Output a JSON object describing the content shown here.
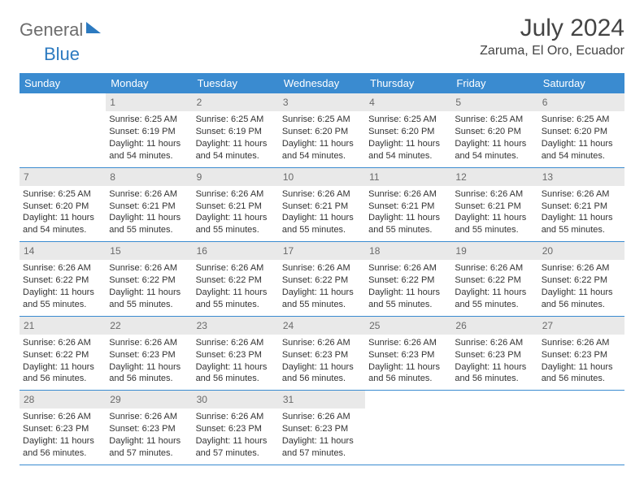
{
  "logo": {
    "part1": "General",
    "part2": "Blue"
  },
  "title": "July 2024",
  "location": "Zaruma, El Oro, Ecuador",
  "colors": {
    "header_bg": "#3a8bd0",
    "header_text": "#ffffff",
    "daynum_bg": "#e9e9e9",
    "daynum_text": "#6a6a6a",
    "row_border": "#3a8bd0",
    "logo_gray": "#6d6d6d",
    "logo_blue": "#2c7ac0",
    "body_text": "#333333",
    "background": "#ffffff"
  },
  "typography": {
    "title_fontsize": 30,
    "location_fontsize": 16,
    "dow_fontsize": 13,
    "daynum_fontsize": 12,
    "body_fontsize": 11,
    "logo_fontsize": 22
  },
  "days_of_week": [
    "Sunday",
    "Monday",
    "Tuesday",
    "Wednesday",
    "Thursday",
    "Friday",
    "Saturday"
  ],
  "weeks": [
    [
      {
        "n": "",
        "sr": "",
        "ss": "",
        "dl": ""
      },
      {
        "n": "1",
        "sr": "6:25 AM",
        "ss": "6:19 PM",
        "dl": "11 hours and 54 minutes."
      },
      {
        "n": "2",
        "sr": "6:25 AM",
        "ss": "6:19 PM",
        "dl": "11 hours and 54 minutes."
      },
      {
        "n": "3",
        "sr": "6:25 AM",
        "ss": "6:20 PM",
        "dl": "11 hours and 54 minutes."
      },
      {
        "n": "4",
        "sr": "6:25 AM",
        "ss": "6:20 PM",
        "dl": "11 hours and 54 minutes."
      },
      {
        "n": "5",
        "sr": "6:25 AM",
        "ss": "6:20 PM",
        "dl": "11 hours and 54 minutes."
      },
      {
        "n": "6",
        "sr": "6:25 AM",
        "ss": "6:20 PM",
        "dl": "11 hours and 54 minutes."
      }
    ],
    [
      {
        "n": "7",
        "sr": "6:25 AM",
        "ss": "6:20 PM",
        "dl": "11 hours and 54 minutes."
      },
      {
        "n": "8",
        "sr": "6:26 AM",
        "ss": "6:21 PM",
        "dl": "11 hours and 55 minutes."
      },
      {
        "n": "9",
        "sr": "6:26 AM",
        "ss": "6:21 PM",
        "dl": "11 hours and 55 minutes."
      },
      {
        "n": "10",
        "sr": "6:26 AM",
        "ss": "6:21 PM",
        "dl": "11 hours and 55 minutes."
      },
      {
        "n": "11",
        "sr": "6:26 AM",
        "ss": "6:21 PM",
        "dl": "11 hours and 55 minutes."
      },
      {
        "n": "12",
        "sr": "6:26 AM",
        "ss": "6:21 PM",
        "dl": "11 hours and 55 minutes."
      },
      {
        "n": "13",
        "sr": "6:26 AM",
        "ss": "6:21 PM",
        "dl": "11 hours and 55 minutes."
      }
    ],
    [
      {
        "n": "14",
        "sr": "6:26 AM",
        "ss": "6:22 PM",
        "dl": "11 hours and 55 minutes."
      },
      {
        "n": "15",
        "sr": "6:26 AM",
        "ss": "6:22 PM",
        "dl": "11 hours and 55 minutes."
      },
      {
        "n": "16",
        "sr": "6:26 AM",
        "ss": "6:22 PM",
        "dl": "11 hours and 55 minutes."
      },
      {
        "n": "17",
        "sr": "6:26 AM",
        "ss": "6:22 PM",
        "dl": "11 hours and 55 minutes."
      },
      {
        "n": "18",
        "sr": "6:26 AM",
        "ss": "6:22 PM",
        "dl": "11 hours and 55 minutes."
      },
      {
        "n": "19",
        "sr": "6:26 AM",
        "ss": "6:22 PM",
        "dl": "11 hours and 55 minutes."
      },
      {
        "n": "20",
        "sr": "6:26 AM",
        "ss": "6:22 PM",
        "dl": "11 hours and 56 minutes."
      }
    ],
    [
      {
        "n": "21",
        "sr": "6:26 AM",
        "ss": "6:22 PM",
        "dl": "11 hours and 56 minutes."
      },
      {
        "n": "22",
        "sr": "6:26 AM",
        "ss": "6:23 PM",
        "dl": "11 hours and 56 minutes."
      },
      {
        "n": "23",
        "sr": "6:26 AM",
        "ss": "6:23 PM",
        "dl": "11 hours and 56 minutes."
      },
      {
        "n": "24",
        "sr": "6:26 AM",
        "ss": "6:23 PM",
        "dl": "11 hours and 56 minutes."
      },
      {
        "n": "25",
        "sr": "6:26 AM",
        "ss": "6:23 PM",
        "dl": "11 hours and 56 minutes."
      },
      {
        "n": "26",
        "sr": "6:26 AM",
        "ss": "6:23 PM",
        "dl": "11 hours and 56 minutes."
      },
      {
        "n": "27",
        "sr": "6:26 AM",
        "ss": "6:23 PM",
        "dl": "11 hours and 56 minutes."
      }
    ],
    [
      {
        "n": "28",
        "sr": "6:26 AM",
        "ss": "6:23 PM",
        "dl": "11 hours and 56 minutes."
      },
      {
        "n": "29",
        "sr": "6:26 AM",
        "ss": "6:23 PM",
        "dl": "11 hours and 57 minutes."
      },
      {
        "n": "30",
        "sr": "6:26 AM",
        "ss": "6:23 PM",
        "dl": "11 hours and 57 minutes."
      },
      {
        "n": "31",
        "sr": "6:26 AM",
        "ss": "6:23 PM",
        "dl": "11 hours and 57 minutes."
      },
      {
        "n": "",
        "sr": "",
        "ss": "",
        "dl": ""
      },
      {
        "n": "",
        "sr": "",
        "ss": "",
        "dl": ""
      },
      {
        "n": "",
        "sr": "",
        "ss": "",
        "dl": ""
      }
    ]
  ],
  "labels": {
    "sunrise": "Sunrise:",
    "sunset": "Sunset:",
    "daylight": "Daylight:"
  }
}
